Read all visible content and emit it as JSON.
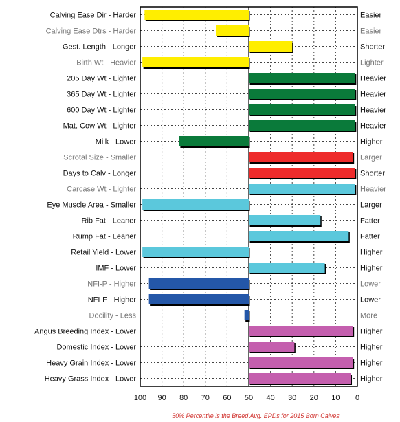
{
  "chart_data": {
    "type": "bar",
    "orientation": "horizontal",
    "x_axis": {
      "min": 0,
      "max": 100,
      "reversed": true,
      "ticks": [
        100,
        90,
        80,
        70,
        60,
        50,
        40,
        30,
        20,
        10,
        0
      ]
    },
    "baseline": 50,
    "grid": true,
    "footnote": "50% Percentile is the Breed Avg. EPDs for 2015 Born Calves",
    "rows": [
      {
        "label": "Calving Ease Dir - Harder",
        "right_label": "Easier",
        "value": 98,
        "color": "#ffee00"
      },
      {
        "label": "Calving Ease Dtrs - Harder",
        "right_label": "Easier",
        "value": 65,
        "color": "#ffee00",
        "faded": true
      },
      {
        "label": "Gest. Length - Longer",
        "right_label": "Shorter",
        "value": 30,
        "color": "#ffee00"
      },
      {
        "label": "Birth Wt - Heavier",
        "right_label": "Lighter",
        "value": 99,
        "color": "#ffee00",
        "faded": true
      },
      {
        "label": "205 Day Wt - Lighter",
        "right_label": "Heavier",
        "value": 1,
        "color": "#0a7a3a"
      },
      {
        "label": "365 Day Wt - Lighter",
        "right_label": "Heavier",
        "value": 1,
        "color": "#0a7a3a"
      },
      {
        "label": "600 Day Wt - Lighter",
        "right_label": "Heavier",
        "value": 1,
        "color": "#0a7a3a"
      },
      {
        "label": "Mat. Cow Wt - Lighter",
        "right_label": "Heavier",
        "value": 1,
        "color": "#0a7a3a"
      },
      {
        "label": "Milk - Lower",
        "right_label": "Higher",
        "value": 82,
        "color": "#0a7a3a"
      },
      {
        "label": "Scrotal Size - Smaller",
        "right_label": "Larger",
        "value": 2,
        "color": "#ee2b2b",
        "faded": true
      },
      {
        "label": "Days to Calv - Longer",
        "right_label": "Shorter",
        "value": 1,
        "color": "#ee2b2b"
      },
      {
        "label": "Carcase Wt - Lighter",
        "right_label": "Heavier",
        "value": 1,
        "color": "#5bc8dc",
        "faded": true
      },
      {
        "label": "Eye Muscle Area - Smaller",
        "right_label": "Larger",
        "value": 99,
        "color": "#5bc8dc"
      },
      {
        "label": "Rib Fat - Leaner",
        "right_label": "Fatter",
        "value": 17,
        "color": "#5bc8dc"
      },
      {
        "label": "Rump Fat - Leaner",
        "right_label": "Fatter",
        "value": 4,
        "color": "#5bc8dc"
      },
      {
        "label": "Retail Yield - Lower",
        "right_label": "Higher",
        "value": 99,
        "color": "#5bc8dc"
      },
      {
        "label": "IMF - Lower",
        "right_label": "Higher",
        "value": 15,
        "color": "#5bc8dc"
      },
      {
        "label": "NFI-P - Higher",
        "right_label": "Lower",
        "value": 96,
        "color": "#2457a8",
        "faded": true
      },
      {
        "label": "NFI-F - Higher",
        "right_label": "Lower",
        "value": 96,
        "color": "#2457a8"
      },
      {
        "label": "Docility - Less",
        "right_label": "More",
        "value": 52,
        "color": "#2457a8",
        "faded": true
      },
      {
        "label": "Angus Breeding Index - Lower",
        "right_label": "Higher",
        "value": 2,
        "color": "#c45fae"
      },
      {
        "label": "Domestic Index - Lower",
        "right_label": "Higher",
        "value": 29,
        "color": "#c45fae"
      },
      {
        "label": "Heavy Grain Index - Lower",
        "right_label": "Higher",
        "value": 2,
        "color": "#c45fae"
      },
      {
        "label": "Heavy Grass Index - Lower",
        "right_label": "Higher",
        "value": 3,
        "color": "#c45fae"
      }
    ]
  }
}
